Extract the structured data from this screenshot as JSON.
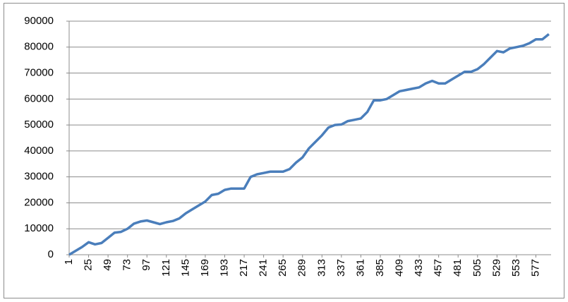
{
  "chart_data": {
    "type": "line",
    "x": [
      1,
      9,
      17,
      25,
      33,
      41,
      49,
      57,
      65,
      73,
      81,
      89,
      97,
      105,
      113,
      121,
      129,
      137,
      145,
      153,
      161,
      169,
      177,
      185,
      193,
      201,
      209,
      217,
      225,
      233,
      241,
      249,
      257,
      265,
      273,
      281,
      289,
      297,
      305,
      313,
      321,
      329,
      337,
      345,
      353,
      361,
      369,
      377,
      385,
      393,
      401,
      409,
      417,
      425,
      433,
      441,
      449,
      457,
      465,
      473,
      481,
      489,
      497,
      505,
      513,
      521,
      529,
      537,
      545,
      553,
      561,
      569,
      577,
      585,
      593
    ],
    "series": [
      {
        "color": "#4a7ebb",
        "values": [
          0,
          1500,
          3000,
          4800,
          4000,
          4500,
          6500,
          8500,
          8800,
          10000,
          12000,
          12800,
          13200,
          12500,
          11800,
          12500,
          13000,
          14000,
          16000,
          17500,
          19000,
          20500,
          23000,
          23500,
          25000,
          25500,
          25500,
          25500,
          30000,
          31000,
          31500,
          32000,
          32000,
          32000,
          33000,
          35500,
          37500,
          41000,
          43500,
          46000,
          49000,
          50000,
          50200,
          51500,
          52000,
          52500,
          55000,
          59500,
          59500,
          60000,
          61500,
          63000,
          63500,
          64000,
          64500,
          66000,
          67000,
          66000,
          66000,
          67500,
          69000,
          70500,
          70500,
          71500,
          73500,
          76000,
          78500,
          78000,
          79500,
          80000,
          80500,
          81500,
          83000,
          83000,
          85000
        ]
      }
    ],
    "xlim": [
      1,
      594
    ],
    "xticks": [
      1,
      25,
      49,
      73,
      97,
      121,
      145,
      169,
      193,
      217,
      241,
      265,
      289,
      313,
      337,
      361,
      385,
      409,
      433,
      457,
      481,
      505,
      529,
      553,
      577
    ],
    "ylim": [
      0,
      90000
    ],
    "yticks": [
      0,
      10000,
      20000,
      30000,
      40000,
      50000,
      60000,
      70000,
      80000,
      90000
    ],
    "grid": true
  }
}
